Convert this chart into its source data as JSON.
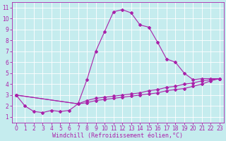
{
  "xlabel": "Windchill (Refroidissement éolien,°C)",
  "xlim": [
    -0.5,
    23.5
  ],
  "ylim": [
    0.5,
    11.5
  ],
  "xticks": [
    0,
    1,
    2,
    3,
    4,
    5,
    6,
    7,
    8,
    9,
    10,
    11,
    12,
    13,
    14,
    15,
    16,
    17,
    18,
    19,
    20,
    21,
    22,
    23
  ],
  "yticks": [
    1,
    2,
    3,
    4,
    5,
    6,
    7,
    8,
    9,
    10,
    11
  ],
  "background_color": "#c5ecee",
  "grid_color": "#ffffff",
  "line_color": "#aa22aa",
  "line1_x": [
    0,
    1,
    2,
    3,
    4,
    5,
    6,
    7,
    8,
    9,
    10,
    11,
    12,
    13,
    14,
    15,
    16,
    17,
    18,
    19,
    20,
    21,
    22,
    23
  ],
  "line1_y": [
    3.0,
    2.0,
    1.5,
    1.4,
    1.6,
    1.5,
    1.6,
    2.2,
    4.4,
    7.0,
    8.8,
    10.6,
    10.8,
    10.5,
    9.4,
    9.2,
    7.8,
    6.3,
    6.0,
    5.0,
    4.4,
    4.5,
    4.5,
    4.5
  ],
  "line2_x": [
    0,
    7,
    8,
    9,
    10,
    11,
    12,
    13,
    14,
    15,
    16,
    17,
    18,
    19,
    20,
    21,
    22,
    23
  ],
  "line2_y": [
    3.0,
    2.2,
    2.5,
    2.7,
    2.8,
    2.9,
    3.0,
    3.1,
    3.2,
    3.4,
    3.5,
    3.7,
    3.8,
    4.0,
    4.1,
    4.3,
    4.4,
    4.5
  ],
  "line3_x": [
    0,
    7,
    8,
    9,
    10,
    11,
    12,
    13,
    14,
    15,
    16,
    17,
    18,
    19,
    20,
    21,
    22,
    23
  ],
  "line3_y": [
    3.0,
    2.2,
    2.3,
    2.5,
    2.6,
    2.7,
    2.8,
    2.9,
    3.0,
    3.1,
    3.2,
    3.4,
    3.5,
    3.6,
    3.8,
    4.0,
    4.3,
    4.5
  ],
  "fontsize": 6,
  "tick_fontsize": 5.5,
  "marker": "D",
  "marker_size": 2.0,
  "linewidth": 0.8
}
